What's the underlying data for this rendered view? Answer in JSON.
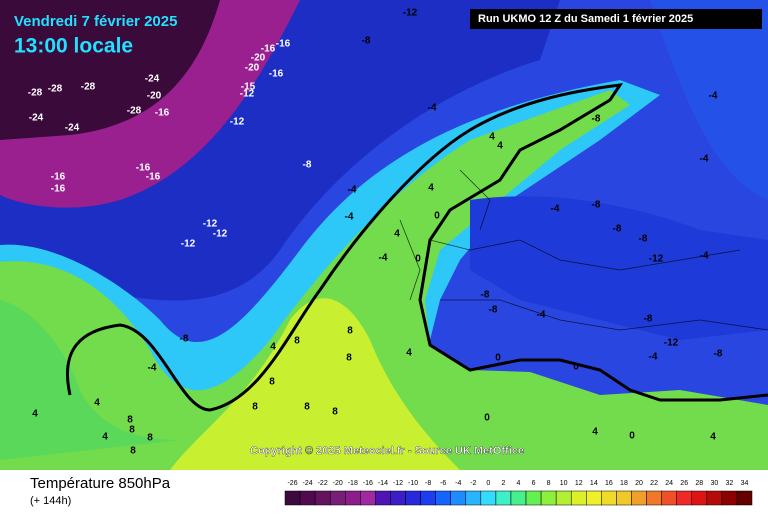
{
  "header": {
    "date": "Vendredi 7 février 2025",
    "time": "13:00 locale",
    "run": "Run UKMO 12 Z du Samedi 1 février 2025"
  },
  "copyright": "Copyright © 2025 Meteociel.fr - Source UK MetOffice",
  "footer": {
    "title": "Température 850hPa",
    "lead": "(+ 144h)"
  },
  "map": {
    "labels": [
      "-12",
      "-8",
      "-16",
      "-16",
      "-20",
      "-20",
      "-16",
      "-15",
      "-12",
      "-24",
      "-28",
      "-28",
      "-28",
      "-20",
      "-28",
      "-16",
      "-24",
      "-24",
      "-12",
      "-16",
      "-16",
      "-16",
      "-16",
      "-8",
      "-12",
      "-12",
      "-12",
      "-4",
      "-4",
      "-4",
      "4",
      "4",
      "4",
      "0",
      "4",
      "-4",
      "0",
      "-8",
      "-4",
      "-8",
      "-4",
      "-4",
      "-4",
      "-8",
      "-8",
      "-8",
      "-12",
      "-4",
      "-8",
      "-8",
      "-4",
      "-8",
      "-12",
      "-8",
      "-4",
      "0",
      "0",
      "4",
      "8",
      "8",
      "8",
      "4",
      "8",
      "8",
      "8",
      "8",
      "8",
      "8",
      "8",
      "4",
      "4",
      "4",
      "8",
      "0",
      "4",
      "4",
      "0"
    ]
  },
  "colorbar": {
    "ticks": [
      -26,
      -24,
      -22,
      -20,
      -18,
      -16,
      -14,
      -12,
      -10,
      -8,
      -6,
      -4,
      -2,
      0,
      2,
      4,
      6,
      8,
      10,
      12,
      14,
      16,
      18,
      20,
      22,
      24,
      26,
      28,
      30,
      32,
      34
    ],
    "colors": [
      "#3c0a3c",
      "#500a50",
      "#64145f",
      "#781e78",
      "#8c1e8c",
      "#a028a0",
      "#5014b4",
      "#3c1ec8",
      "#2828dc",
      "#1e3cf0",
      "#1464ff",
      "#1e8cff",
      "#28b4ff",
      "#32dcff",
      "#3cf0c8",
      "#46f08c",
      "#64f050",
      "#8cf03c",
      "#b4f032",
      "#dcf028",
      "#f0f028",
      "#f0dc28",
      "#f0c828",
      "#f0a028",
      "#f07828",
      "#f05028",
      "#f02828",
      "#dc1414",
      "#b40a0a",
      "#8c0000",
      "#640000"
    ]
  }
}
